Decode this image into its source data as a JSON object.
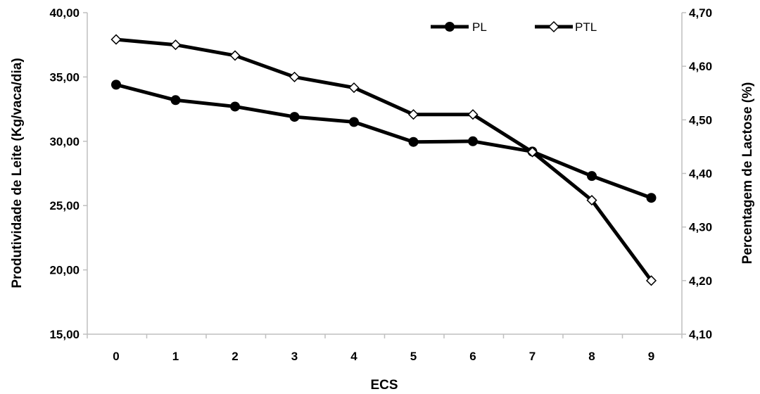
{
  "chart_data": {
    "type": "line",
    "xlabel": "ECS",
    "ylabel_left": "Produtividade de Leite (Kg/vaca/dia)",
    "ylabel_right": "Percentagem de Lactose (%)",
    "categories": [
      0,
      1,
      2,
      3,
      4,
      5,
      6,
      7,
      8,
      9
    ],
    "x_tick_labels": [
      "0",
      "1",
      "2",
      "3",
      "4",
      "5",
      "6",
      "7",
      "8",
      "9"
    ],
    "ylim_left": [
      15,
      40
    ],
    "ylim_right": [
      4.1,
      4.7
    ],
    "y_ticks_left": [
      "15,00",
      "20,00",
      "25,00",
      "30,00",
      "35,00",
      "40,00"
    ],
    "y_ticks_right": [
      "4,10",
      "4,20",
      "4,30",
      "4,40",
      "4,50",
      "4,60",
      "4,70"
    ],
    "grid": false,
    "legend_position": "top-right",
    "series": [
      {
        "name": "PL",
        "axis": "left",
        "marker": "filled-circle",
        "color": "#000000",
        "values": [
          34.4,
          33.2,
          32.7,
          31.9,
          31.5,
          29.95,
          30.0,
          29.2,
          27.3,
          25.6
        ]
      },
      {
        "name": "PTL",
        "axis": "right",
        "marker": "open-diamond",
        "color": "#000000",
        "values": [
          4.65,
          4.64,
          4.62,
          4.58,
          4.56,
          4.51,
          4.51,
          4.44,
          4.35,
          4.2
        ]
      }
    ]
  }
}
